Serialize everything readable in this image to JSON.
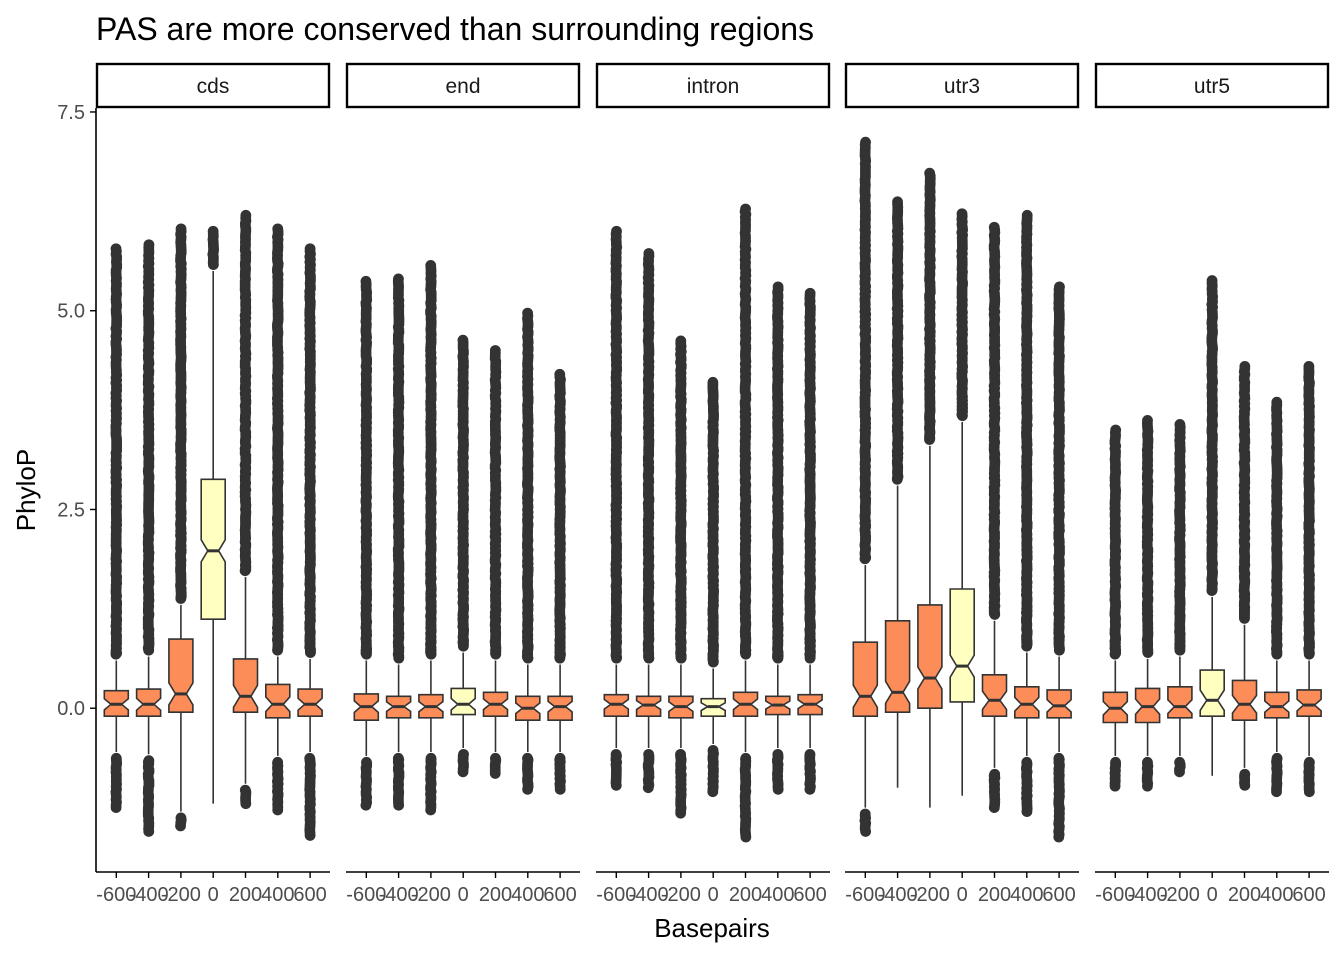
{
  "chart_data": {
    "type": "boxplot",
    "title": "PAS are more conserved than surrounding regions",
    "xlabel": "Basepairs",
    "ylabel": "PhyloP",
    "ylim": [
      -2.06,
      7.55
    ],
    "yticks": [
      0.0,
      2.5,
      5.0,
      7.5
    ],
    "ytick_labels": [
      "0.0",
      "2.5",
      "5.0",
      "7.5"
    ],
    "xticks": [
      -600,
      -400,
      -200,
      0,
      200,
      400,
      600
    ],
    "xtick_labels": [
      "-600",
      "-400",
      "-200",
      "0",
      "200",
      "400",
      "600"
    ],
    "notched": true,
    "grid": false,
    "legend": "none",
    "colors": {
      "flank": "#fc8d59",
      "center": "#ffffbf",
      "outline": "#333333",
      "outlier": "#333333",
      "strip_border": "#000000",
      "axis": "#000000"
    },
    "panels": [
      {
        "label": "cds",
        "boxes": [
          {
            "x": -600,
            "q1": -0.1,
            "median": 0.05,
            "q3": 0.22,
            "lower": -0.55,
            "upper": 0.6,
            "out_lo": -1.25,
            "out_hi": 5.78
          },
          {
            "x": -400,
            "q1": -0.1,
            "median": 0.05,
            "q3": 0.24,
            "lower": -0.58,
            "upper": 0.65,
            "out_lo": -1.55,
            "out_hi": 5.83
          },
          {
            "x": -200,
            "q1": -0.05,
            "median": 0.18,
            "q3": 0.87,
            "lower": -1.3,
            "upper": 1.3,
            "out_lo": -1.48,
            "out_hi": 6.03
          },
          {
            "x": 0,
            "q1": 1.12,
            "median": 1.98,
            "q3": 2.88,
            "lower": -1.2,
            "upper": 5.5,
            "out_lo": -1.2,
            "out_hi": 6.0
          },
          {
            "x": 200,
            "q1": -0.05,
            "median": 0.15,
            "q3": 0.62,
            "lower": -0.95,
            "upper": 1.65,
            "out_lo": -1.2,
            "out_hi": 6.2
          },
          {
            "x": 400,
            "q1": -0.12,
            "median": 0.05,
            "q3": 0.3,
            "lower": -0.6,
            "upper": 0.65,
            "out_lo": -1.28,
            "out_hi": 6.03
          },
          {
            "x": 600,
            "q1": -0.1,
            "median": 0.05,
            "q3": 0.24,
            "lower": -0.55,
            "upper": 0.62,
            "out_lo": -1.6,
            "out_hi": 5.78
          }
        ]
      },
      {
        "label": "end",
        "boxes": [
          {
            "x": -600,
            "q1": -0.15,
            "median": 0.02,
            "q3": 0.18,
            "lower": -0.6,
            "upper": 0.6,
            "out_lo": -1.22,
            "out_hi": 5.37
          },
          {
            "x": -400,
            "q1": -0.12,
            "median": 0.02,
            "q3": 0.15,
            "lower": -0.55,
            "upper": 0.55,
            "out_lo": -1.22,
            "out_hi": 5.4
          },
          {
            "x": -200,
            "q1": -0.12,
            "median": 0.02,
            "q3": 0.17,
            "lower": -0.55,
            "upper": 0.6,
            "out_lo": -1.28,
            "out_hi": 5.57
          },
          {
            "x": 0,
            "q1": -0.08,
            "median": 0.05,
            "q3": 0.25,
            "lower": -0.5,
            "upper": 0.7,
            "out_lo": -0.8,
            "out_hi": 4.63
          },
          {
            "x": 200,
            "q1": -0.1,
            "median": 0.05,
            "q3": 0.2,
            "lower": -0.55,
            "upper": 0.6,
            "out_lo": -0.82,
            "out_hi": 4.5
          },
          {
            "x": 400,
            "q1": -0.15,
            "median": 0.0,
            "q3": 0.15,
            "lower": -0.55,
            "upper": 0.55,
            "out_lo": -1.02,
            "out_hi": 4.97
          },
          {
            "x": 600,
            "q1": -0.15,
            "median": 0.02,
            "q3": 0.15,
            "lower": -0.55,
            "upper": 0.55,
            "out_lo": -1.02,
            "out_hi": 4.2
          }
        ]
      },
      {
        "label": "intron",
        "boxes": [
          {
            "x": -600,
            "q1": -0.1,
            "median": 0.05,
            "q3": 0.17,
            "lower": -0.5,
            "upper": 0.55,
            "out_lo": -0.97,
            "out_hi": 6.0
          },
          {
            "x": -400,
            "q1": -0.1,
            "median": 0.04,
            "q3": 0.15,
            "lower": -0.5,
            "upper": 0.55,
            "out_lo": -1.0,
            "out_hi": 5.72
          },
          {
            "x": -200,
            "q1": -0.12,
            "median": 0.02,
            "q3": 0.15,
            "lower": -0.5,
            "upper": 0.55,
            "out_lo": -1.32,
            "out_hi": 4.62
          },
          {
            "x": 0,
            "q1": -0.1,
            "median": 0.02,
            "q3": 0.12,
            "lower": -0.45,
            "upper": 0.5,
            "out_lo": -1.05,
            "out_hi": 4.1
          },
          {
            "x": 200,
            "q1": -0.1,
            "median": 0.05,
            "q3": 0.2,
            "lower": -0.55,
            "upper": 0.6,
            "out_lo": -1.62,
            "out_hi": 6.28
          },
          {
            "x": 400,
            "q1": -0.08,
            "median": 0.04,
            "q3": 0.15,
            "lower": -0.5,
            "upper": 0.55,
            "out_lo": -1.02,
            "out_hi": 5.3
          },
          {
            "x": 600,
            "q1": -0.08,
            "median": 0.05,
            "q3": 0.17,
            "lower": -0.5,
            "upper": 0.55,
            "out_lo": -1.02,
            "out_hi": 5.22
          }
        ]
      },
      {
        "label": "utr3",
        "boxes": [
          {
            "x": -600,
            "q1": -0.1,
            "median": 0.15,
            "q3": 0.83,
            "lower": -1.25,
            "upper": 1.8,
            "out_lo": -1.55,
            "out_hi": 7.12
          },
          {
            "x": -400,
            "q1": -0.05,
            "median": 0.2,
            "q3": 1.1,
            "lower": -1.0,
            "upper": 2.8,
            "out_lo": -1.0,
            "out_hi": 6.37
          },
          {
            "x": -200,
            "q1": 0.0,
            "median": 0.38,
            "q3": 1.3,
            "lower": -1.25,
            "upper": 3.3,
            "out_lo": -1.25,
            "out_hi": 6.73
          },
          {
            "x": 0,
            "q1": 0.08,
            "median": 0.53,
            "q3": 1.5,
            "lower": -1.1,
            "upper": 3.6,
            "out_lo": -1.1,
            "out_hi": 6.22
          },
          {
            "x": 200,
            "q1": -0.1,
            "median": 0.1,
            "q3": 0.42,
            "lower": -0.75,
            "upper": 1.1,
            "out_lo": -1.25,
            "out_hi": 6.05
          },
          {
            "x": 400,
            "q1": -0.12,
            "median": 0.05,
            "q3": 0.27,
            "lower": -0.6,
            "upper": 0.7,
            "out_lo": -1.3,
            "out_hi": 6.2
          },
          {
            "x": 600,
            "q1": -0.12,
            "median": 0.03,
            "q3": 0.23,
            "lower": -0.55,
            "upper": 0.65,
            "out_lo": -1.62,
            "out_hi": 5.3
          }
        ]
      },
      {
        "label": "utr5",
        "boxes": [
          {
            "x": -600,
            "q1": -0.18,
            "median": 0.0,
            "q3": 0.2,
            "lower": -0.6,
            "upper": 0.6,
            "out_lo": -0.98,
            "out_hi": 3.5
          },
          {
            "x": -400,
            "q1": -0.18,
            "median": 0.02,
            "q3": 0.25,
            "lower": -0.6,
            "upper": 0.62,
            "out_lo": -0.98,
            "out_hi": 3.62
          },
          {
            "x": -200,
            "q1": -0.12,
            "median": 0.02,
            "q3": 0.27,
            "lower": -0.6,
            "upper": 0.65,
            "out_lo": -0.8,
            "out_hi": 3.57
          },
          {
            "x": 0,
            "q1": -0.1,
            "median": 0.1,
            "q3": 0.48,
            "lower": -0.85,
            "upper": 1.4,
            "out_lo": -0.85,
            "out_hi": 5.38
          },
          {
            "x": 200,
            "q1": -0.15,
            "median": 0.05,
            "q3": 0.35,
            "lower": -0.75,
            "upper": 1.05,
            "out_lo": -0.97,
            "out_hi": 4.3
          },
          {
            "x": 400,
            "q1": -0.12,
            "median": 0.02,
            "q3": 0.2,
            "lower": -0.55,
            "upper": 0.6,
            "out_lo": -1.05,
            "out_hi": 3.85
          },
          {
            "x": 600,
            "q1": -0.1,
            "median": 0.04,
            "q3": 0.23,
            "lower": -0.6,
            "upper": 0.6,
            "out_lo": -1.05,
            "out_hi": 4.3
          }
        ]
      }
    ]
  }
}
